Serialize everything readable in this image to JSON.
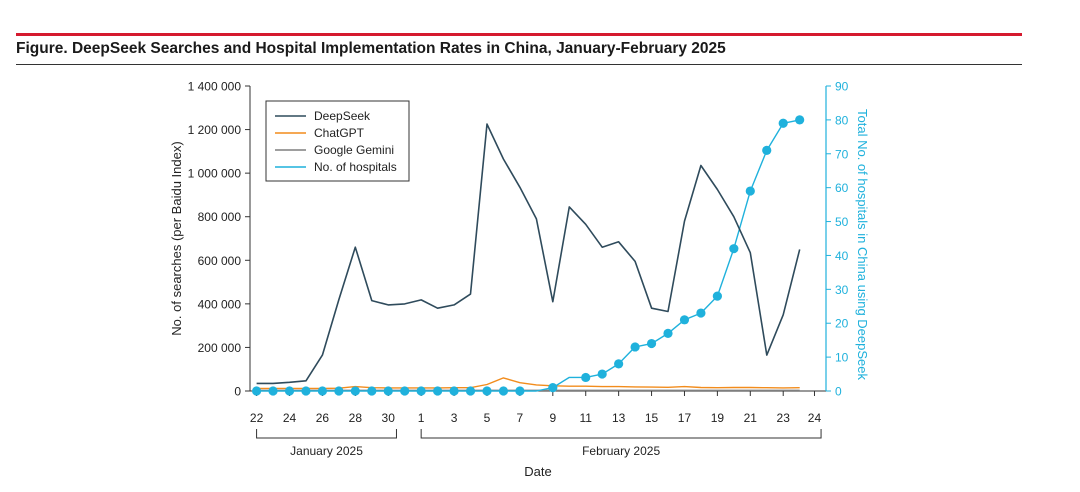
{
  "figure": {
    "title": "Figure. DeepSeek Searches and Hospital Implementation Rates in China, January-February 2025"
  },
  "colors": {
    "deepseek": "#2f4b5c",
    "chatgpt": "#f28c1c",
    "gemini": "#7f7f7f",
    "hospitals": "#1fb1dc",
    "axis": "#333333",
    "title_rule": "#d51a2f"
  },
  "chart_data": {
    "type": "line",
    "title": "DeepSeek Searches and Hospital Implementation Rates in China, January-February 2025",
    "xlabel": "Date",
    "ylabel": "No. of searches (per Baidu Index)",
    "y2label": "Total No. of hospitals in China using DeepSeek",
    "x_index": [
      0,
      1,
      2,
      3,
      4,
      5,
      6,
      7,
      8,
      9,
      10,
      11,
      12,
      13,
      14,
      15,
      16,
      17,
      18,
      19,
      20,
      21,
      22,
      23,
      24,
      25,
      26,
      27,
      28,
      29,
      30,
      31,
      32,
      33
    ],
    "x_ticks": [
      {
        "i": 0,
        "label": "22"
      },
      {
        "i": 2,
        "label": "24"
      },
      {
        "i": 4,
        "label": "26"
      },
      {
        "i": 6,
        "label": "28"
      },
      {
        "i": 8,
        "label": "30"
      },
      {
        "i": 10,
        "label": "1"
      },
      {
        "i": 12,
        "label": "3"
      },
      {
        "i": 14,
        "label": "5"
      },
      {
        "i": 16,
        "label": "7"
      },
      {
        "i": 18,
        "label": "9"
      },
      {
        "i": 20,
        "label": "11"
      },
      {
        "i": 22,
        "label": "13"
      },
      {
        "i": 24,
        "label": "15"
      },
      {
        "i": 26,
        "label": "17"
      },
      {
        "i": 28,
        "label": "19"
      },
      {
        "i": 30,
        "label": "21"
      },
      {
        "i": 32,
        "label": "23"
      },
      {
        "i": 33.9,
        "label": "24"
      }
    ],
    "x_range": [
      -0.4,
      34.6
    ],
    "month_groups": [
      {
        "label": "January 2025",
        "start": 0,
        "end": 8.5
      },
      {
        "label": "February 2025",
        "start": 10,
        "end": 34.3
      }
    ],
    "ylim": [
      0,
      1400000
    ],
    "y_ticks": [
      0,
      200000,
      400000,
      600000,
      800000,
      1000000,
      1200000,
      1400000
    ],
    "y_tick_labels": [
      "0",
      "200 000",
      "400 000",
      "600 000",
      "800 000",
      "1 000 000",
      "1 200 000",
      "1 400 000"
    ],
    "y2lim": [
      0,
      90
    ],
    "y2_ticks": [
      0,
      10,
      20,
      30,
      40,
      50,
      60,
      70,
      80,
      90
    ],
    "y2_tick_labels": [
      "0",
      "10",
      "20",
      "30",
      "40",
      "50",
      "60",
      "70",
      "80",
      "90"
    ],
    "legend_position": "top-left",
    "series": [
      {
        "name": "DeepSeek",
        "axis": "left",
        "color_key": "deepseek",
        "markers": false,
        "x": [
          0,
          1,
          2,
          3,
          4,
          5,
          6,
          7,
          8,
          9,
          10,
          11,
          12,
          13,
          14,
          15,
          16,
          17,
          18,
          19,
          20,
          21,
          22,
          23,
          24,
          25,
          26,
          27,
          28,
          29,
          30,
          31,
          32,
          33
        ],
        "values": [
          35000,
          35000,
          40000,
          47000,
          165000,
          420000,
          660000,
          415000,
          395000,
          400000,
          418000,
          380000,
          395000,
          445000,
          1225000,
          1065000,
          935000,
          790000,
          410000,
          845000,
          765000,
          660000,
          685000,
          595000,
          380000,
          365000,
          780000,
          1035000,
          925000,
          800000,
          635000,
          165000,
          350000,
          650000
        ]
      },
      {
        "name": "ChatGPT",
        "axis": "left",
        "color_key": "chatgpt",
        "markers": false,
        "x": [
          0,
          1,
          2,
          3,
          4,
          5,
          6,
          7,
          8,
          9,
          10,
          11,
          12,
          13,
          14,
          15,
          16,
          17,
          18,
          19,
          20,
          21,
          22,
          23,
          24,
          25,
          26,
          27,
          28,
          29,
          30,
          31,
          32,
          33
        ],
        "values": [
          12000,
          12000,
          12000,
          12000,
          12000,
          13000,
          20000,
          15000,
          14000,
          14000,
          14000,
          14000,
          15000,
          15000,
          30000,
          60000,
          38000,
          28000,
          24000,
          22000,
          22000,
          20000,
          20000,
          19000,
          18000,
          17000,
          20000,
          16000,
          15000,
          16000,
          16000,
          15000,
          14000,
          15000
        ]
      },
      {
        "name": "Google Gemini",
        "axis": "left",
        "color_key": "gemini",
        "markers": false,
        "x": [
          0,
          1,
          2,
          3,
          4,
          5,
          6,
          7,
          8,
          9,
          10,
          11,
          12,
          13,
          14,
          15,
          16,
          17,
          18,
          19,
          20,
          21,
          22,
          23,
          24,
          25,
          26,
          27,
          28,
          29,
          30,
          31,
          32,
          33
        ],
        "values": [
          3000,
          3000,
          3000,
          3000,
          3000,
          3000,
          3000,
          3000,
          3000,
          3000,
          3000,
          3000,
          3000,
          3000,
          3000,
          3000,
          3000,
          3000,
          3000,
          3000,
          3000,
          3000,
          3000,
          3000,
          3000,
          3000,
          3000,
          3000,
          3000,
          3000,
          3000,
          3000,
          3000,
          3000
        ]
      },
      {
        "name": "No. of hospitals",
        "axis": "right",
        "color_key": "hospitals",
        "markers": true,
        "x": [
          0,
          1,
          2,
          3,
          4,
          5,
          6,
          7,
          8,
          9,
          10,
          11,
          12,
          13,
          14,
          15,
          16,
          17,
          18,
          19,
          20,
          21,
          22,
          23,
          24,
          25,
          26,
          27,
          28,
          29,
          30,
          31,
          32,
          33
        ],
        "values": [
          0,
          0,
          0,
          0,
          0,
          0,
          0,
          0,
          0,
          0,
          0,
          0,
          0,
          0,
          0,
          0,
          0,
          0,
          1,
          4,
          4,
          5,
          8,
          13,
          14,
          17,
          21,
          23,
          28,
          42,
          59,
          71,
          79,
          80
        ],
        "marker_x": [
          0,
          1,
          2,
          3,
          4,
          5,
          6,
          7,
          8,
          9,
          10,
          11,
          12,
          13,
          14,
          15,
          16,
          18,
          20,
          21,
          22,
          23,
          24,
          25,
          26,
          27,
          28,
          29,
          30,
          31,
          32,
          33
        ],
        "marker_values": [
          0,
          0,
          0,
          0,
          0,
          0,
          0,
          0,
          0,
          0,
          0,
          0,
          0,
          0,
          0,
          0,
          0,
          1,
          4,
          5,
          8,
          13,
          14,
          17,
          21,
          23,
          28,
          42,
          59,
          71,
          79,
          80
        ]
      }
    ]
  }
}
